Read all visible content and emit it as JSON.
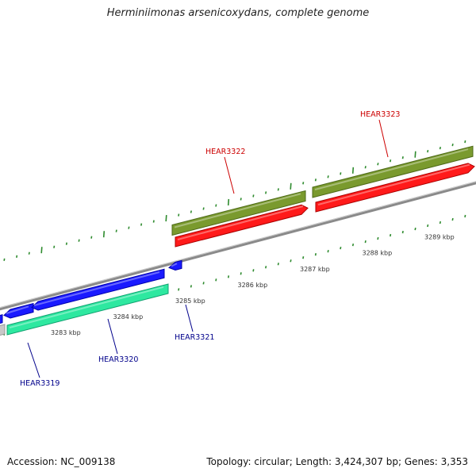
{
  "title": "Herminiimonas arsenicoxydans, complete genome",
  "footer": {
    "accession": "Accession: NC_009138",
    "topology": "Topology: circular; Length: 3,424,307 bp; Genes: 3,353"
  },
  "colors": {
    "backbone": "#8a8a8a",
    "tick": "#2e8b2e",
    "forward_cds": "#ff1a1a",
    "forward_gene": "#7a9a2e",
    "reverse_cds": "#1a1aff",
    "reverse_gene": "#2ee8a0",
    "forward_label": "#cc0000",
    "reverse_label": "#00008b"
  },
  "scale": {
    "tick_labels": [
      {
        "kbp": 3283,
        "label": "3283 kbp"
      },
      {
        "kbp": 3284,
        "label": "3284 kbp"
      },
      {
        "kbp": 3285,
        "label": "3285 kbp"
      },
      {
        "kbp": 3286,
        "label": "3286 kbp"
      },
      {
        "kbp": 3287,
        "label": "3287 kbp"
      },
      {
        "kbp": 3288,
        "label": "3288 kbp"
      },
      {
        "kbp": 3289,
        "label": "3289 kbp"
      }
    ]
  },
  "genes": [
    {
      "id": "HEAR3319",
      "strand": "reverse"
    },
    {
      "id": "HEAR3320",
      "strand": "reverse"
    },
    {
      "id": "HEAR3321",
      "strand": "reverse"
    },
    {
      "id": "HEAR3322",
      "strand": "forward"
    },
    {
      "id": "HEAR3323",
      "strand": "forward"
    }
  ]
}
